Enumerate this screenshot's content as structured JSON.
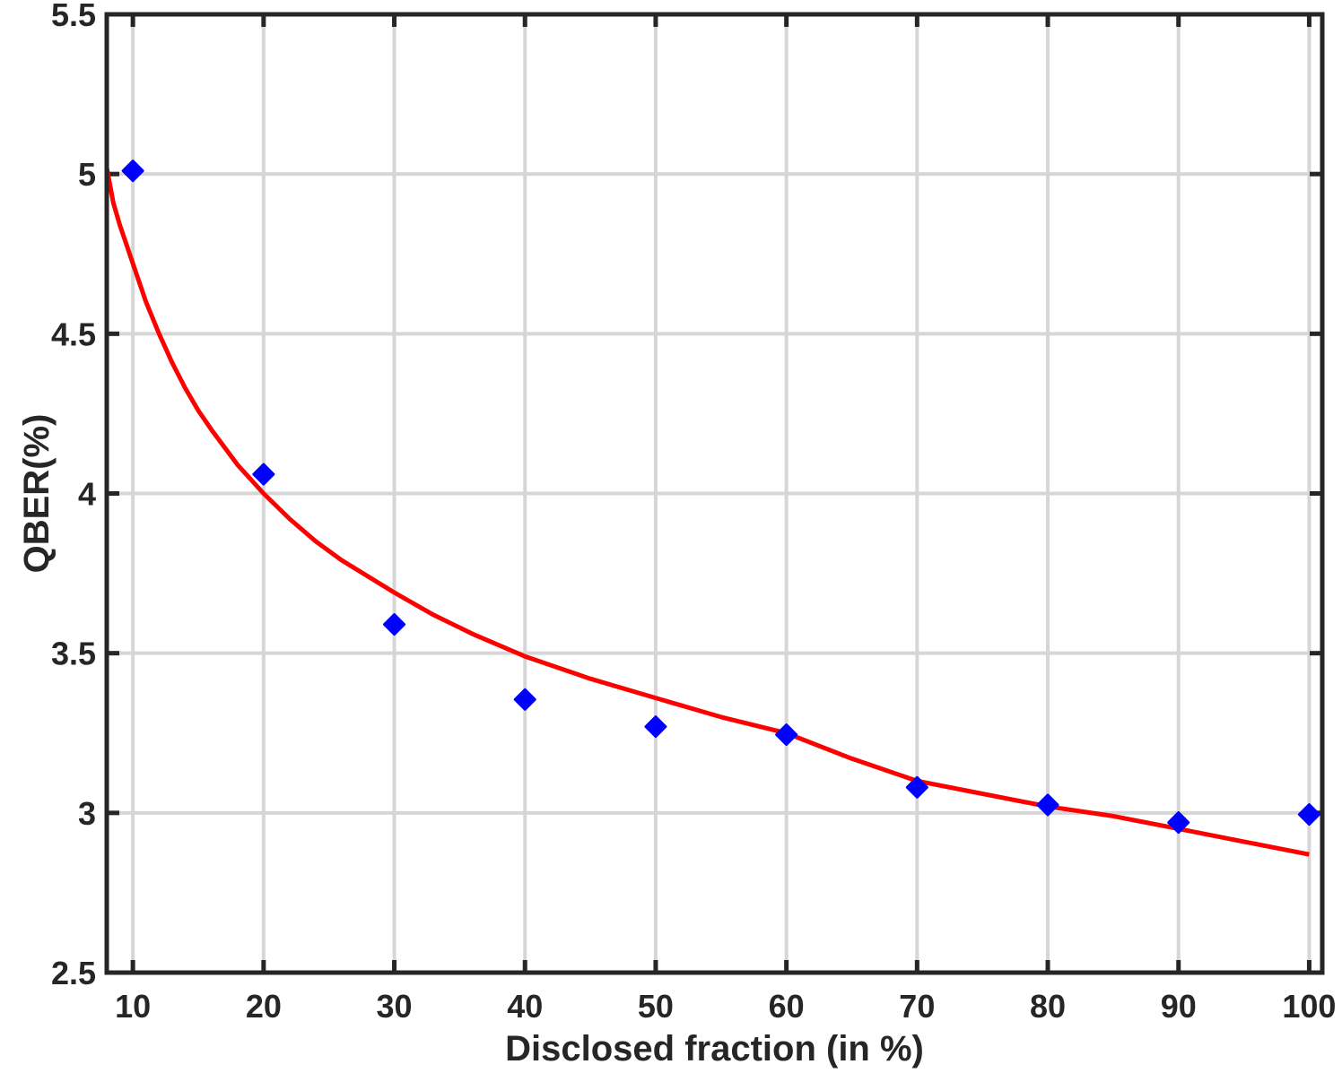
{
  "chart_data": {
    "type": "scatter",
    "title": "",
    "xlabel": "Disclosed fraction (in %)",
    "ylabel": "QBER(%)",
    "xlim": [
      8,
      101
    ],
    "ylim": [
      2.5,
      5.5
    ],
    "xticks": [
      10,
      20,
      30,
      40,
      50,
      60,
      70,
      80,
      90,
      100
    ],
    "xtick_labels": [
      "10",
      "20",
      "30",
      "40",
      "50",
      "60",
      "70",
      "80",
      "90",
      "100"
    ],
    "yticks": [
      2.5,
      3,
      3.5,
      4,
      4.5,
      5,
      5.5
    ],
    "ytick_labels": [
      "2.5",
      "3",
      "3.5",
      "4",
      "4.5",
      "5",
      "5.5"
    ],
    "grid": true,
    "legend": "none",
    "series": [
      {
        "type": "scatter",
        "color": "#0000ff",
        "marker": "diamond",
        "x": [
          10,
          20,
          30,
          40,
          50,
          60,
          70,
          80,
          90,
          100
        ],
        "y": [
          5.01,
          4.06,
          3.59,
          3.355,
          3.27,
          3.245,
          3.08,
          3.025,
          2.97,
          2.995
        ]
      },
      {
        "type": "line",
        "color": "#ff0000",
        "x": [
          8,
          8.5,
          9,
          9.5,
          10,
          11,
          12,
          13,
          14,
          15,
          16,
          18,
          20,
          22,
          24,
          26,
          28,
          30,
          33,
          36,
          40,
          45,
          50,
          55,
          60,
          65,
          70,
          75,
          80,
          85,
          90,
          95,
          100
        ],
        "y": [
          5.02,
          4.91,
          4.84,
          4.78,
          4.72,
          4.6,
          4.5,
          4.41,
          4.33,
          4.26,
          4.2,
          4.09,
          4.0,
          3.92,
          3.85,
          3.79,
          3.74,
          3.69,
          3.62,
          3.56,
          3.49,
          3.42,
          3.36,
          3.3,
          3.25,
          3.17,
          3.1,
          3.06,
          3.02,
          2.99,
          2.95,
          2.91,
          2.87
        ]
      }
    ]
  }
}
